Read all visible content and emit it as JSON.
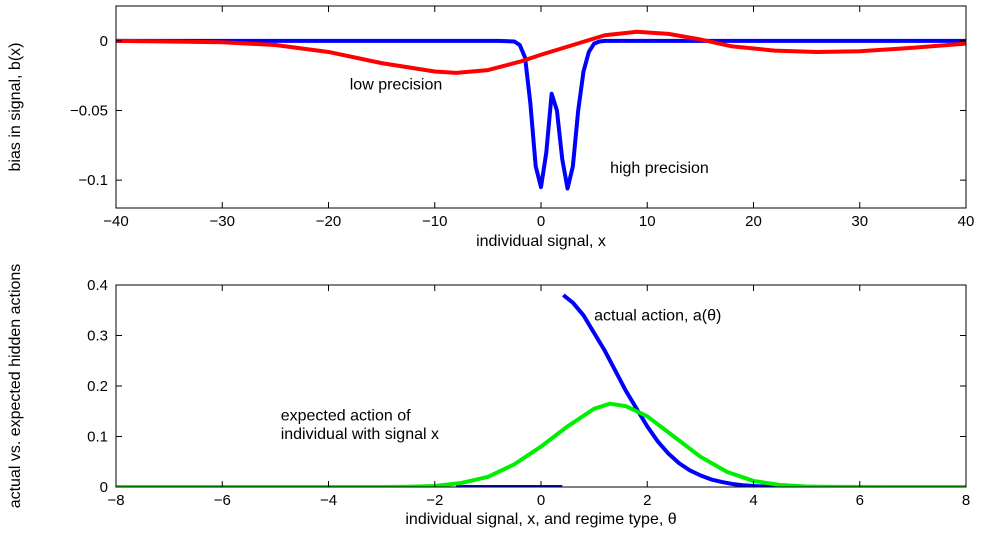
{
  "chart_data": [
    {
      "type": "line",
      "title": "",
      "xlabel": "individual signal, x",
      "ylabel": "bias in signal, b(x)",
      "xlim": [
        -40,
        40
      ],
      "ylim": [
        -0.12,
        0.025
      ],
      "xticks": [
        -40,
        -30,
        -20,
        -10,
        0,
        10,
        20,
        30,
        40
      ],
      "xtick_labels": [
        "−40",
        "−30",
        "−20",
        "−10",
        "0",
        "10",
        "20",
        "30",
        "40"
      ],
      "yticks": [
        0,
        -0.05,
        -0.1
      ],
      "ytick_labels": [
        "0",
        "−0.05",
        "−0.1"
      ],
      "grid": false,
      "series": [
        {
          "color": "#0000ff",
          "x": [
            -40,
            -4,
            -2.5,
            -2,
            -1.5,
            -1,
            -0.5,
            0,
            0.5,
            1,
            1.5,
            2,
            2.5,
            3,
            3.5,
            4,
            4.5,
            5,
            5.5,
            6,
            7,
            40
          ],
          "y": [
            0,
            0,
            -0.0005,
            -0.003,
            -0.012,
            -0.045,
            -0.09,
            -0.105,
            -0.08,
            -0.038,
            -0.05,
            -0.085,
            -0.106,
            -0.09,
            -0.05,
            -0.022,
            -0.008,
            -0.002,
            -0.0005,
            0,
            0,
            0
          ]
        },
        {
          "color": "#ff0000",
          "x": [
            -40,
            -35,
            -30,
            -25,
            -20,
            -15,
            -10,
            -8,
            -5,
            -2,
            0,
            3,
            6,
            9,
            12,
            15,
            18,
            22,
            26,
            30,
            35,
            40
          ],
          "y": [
            0,
            -0.0005,
            -0.001,
            -0.003,
            -0.008,
            -0.016,
            -0.022,
            -0.023,
            -0.021,
            -0.015,
            -0.01,
            -0.003,
            0.004,
            0.0065,
            0.005,
            0.001,
            -0.004,
            -0.007,
            -0.008,
            -0.0075,
            -0.005,
            -0.002
          ]
        }
      ],
      "annotations": [
        {
          "text": "low precision",
          "x": -18,
          "y": -0.035
        },
        {
          "text": "high precision",
          "x": 6.5,
          "y": -0.095
        }
      ]
    },
    {
      "type": "line",
      "title": "",
      "xlabel": "individual signal, x, and regime type, θ",
      "ylabel": "actual vs. expected hidden actions",
      "xlim": [
        -8,
        8
      ],
      "ylim": [
        0,
        0.4
      ],
      "xticks": [
        -8,
        -6,
        -4,
        -2,
        0,
        2,
        4,
        6,
        8
      ],
      "xtick_labels": [
        "−8",
        "−6",
        "−4",
        "−2",
        "0",
        "2",
        "4",
        "6",
        "8"
      ],
      "yticks": [
        0,
        0.1,
        0.2,
        0.3,
        0.4
      ],
      "ytick_labels": [
        "0",
        "0.1",
        "0.2",
        "0.3",
        "0.4"
      ],
      "grid": false,
      "series": [
        {
          "color": "#0000ff",
          "x": [
            0.42,
            0.6,
            0.8,
            1.0,
            1.2,
            1.4,
            1.6,
            1.8,
            2.0,
            2.2,
            2.4,
            2.6,
            2.8,
            3.0,
            3.2,
            3.4,
            3.6,
            3.8,
            4.0,
            4.2,
            4.4,
            4.6,
            4.8,
            5.0,
            8.0
          ],
          "y": [
            0.38,
            0.365,
            0.34,
            0.305,
            0.27,
            0.23,
            0.19,
            0.155,
            0.12,
            0.09,
            0.066,
            0.047,
            0.033,
            0.023,
            0.015,
            0.01,
            0.006,
            0.0035,
            0.002,
            0.001,
            0.0005,
            0.0002,
            0.0001,
            0,
            0
          ]
        },
        {
          "color": "#0000ff",
          "x": [
            -1.6,
            0.4
          ],
          "y": [
            0,
            0
          ]
        },
        {
          "color": "#00ee00",
          "x": [
            -8,
            -3,
            -2.5,
            -2,
            -1.5,
            -1,
            -0.5,
            0,
            0.5,
            1.0,
            1.3,
            1.6,
            2.0,
            2.5,
            3.0,
            3.5,
            4.0,
            4.5,
            5.0,
            5.5,
            8
          ],
          "y": [
            0,
            0,
            0.0005,
            0.002,
            0.008,
            0.02,
            0.045,
            0.08,
            0.12,
            0.155,
            0.165,
            0.16,
            0.14,
            0.1,
            0.06,
            0.03,
            0.012,
            0.004,
            0.001,
            0.0002,
            0
          ]
        }
      ],
      "annotations": [
        {
          "text": "actual action, a(θ)",
          "x": 1.0,
          "y": 0.33
        },
        {
          "text": "expected action of",
          "x": -4.9,
          "y": 0.132
        },
        {
          "text": "individual with signal x",
          "x": -4.9,
          "y": 0.095
        }
      ]
    }
  ]
}
